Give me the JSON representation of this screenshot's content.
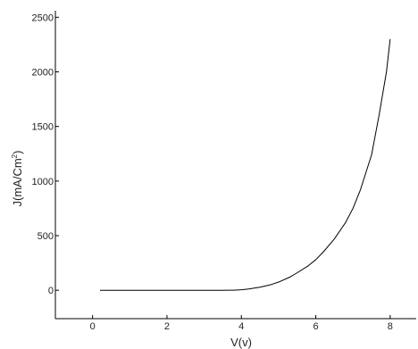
{
  "chart_data": {
    "type": "line",
    "xlabel": "V(v)",
    "ylabel": {
      "prefix": "J(mA/Cm",
      "superscript": "2",
      "suffix": ")"
    },
    "xlim": [
      -1.0,
      8.7
    ],
    "ylim": [
      -260,
      2560
    ],
    "xticks": [
      0,
      2,
      4,
      6,
      8
    ],
    "yticks": [
      0,
      500,
      1000,
      1500,
      2000,
      2500
    ],
    "grid": false,
    "legend": "none",
    "line_color": "#000000",
    "series": [
      {
        "x": [
          0.2,
          1.0,
          2.0,
          3.0,
          3.5,
          3.8,
          4.0,
          4.2,
          4.5,
          4.8,
          5.0,
          5.3,
          5.5,
          5.8,
          6.0,
          6.2,
          6.5,
          6.8,
          7.0,
          7.2,
          7.5,
          7.7,
          7.9,
          8.0
        ],
        "y": [
          0,
          0,
          0,
          0,
          0,
          1,
          5,
          12,
          28,
          52,
          75,
          120,
          160,
          225,
          280,
          350,
          470,
          620,
          750,
          920,
          1240,
          1600,
          2000,
          2300
        ]
      }
    ]
  }
}
